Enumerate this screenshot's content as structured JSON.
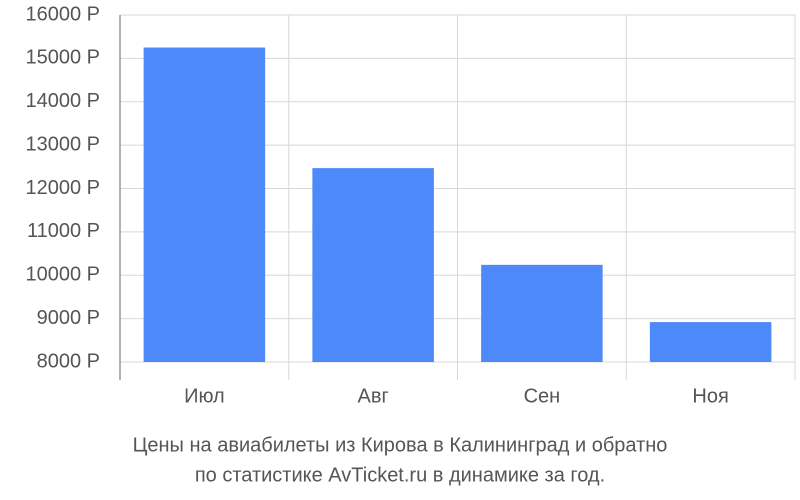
{
  "chart_data": {
    "type": "bar",
    "title": "Цены на авиабилеты из Кирова в Калининград и обратно",
    "subtitle": "по статистике AvTicket.ru в динамике за год.",
    "categories": [
      "Июл",
      "Авг",
      "Сен",
      "Ноя"
    ],
    "values": [
      15250,
      12470,
      10240,
      8920
    ],
    "color": "#4d89f9",
    "ylim": [
      8000,
      16000
    ],
    "yticks": [
      {
        "value": 8000,
        "label": "8000 Р"
      },
      {
        "value": 9000,
        "label": "9000 Р"
      },
      {
        "value": 10000,
        "label": "10000 Р"
      },
      {
        "value": 11000,
        "label": "11000 Р"
      },
      {
        "value": 12000,
        "label": "12000 Р"
      },
      {
        "value": 13000,
        "label": "13000 Р"
      },
      {
        "value": 14000,
        "label": "14000 Р"
      },
      {
        "value": 15000,
        "label": "15000 Р"
      },
      {
        "value": 16000,
        "label": "16000 Р"
      }
    ],
    "grid": true
  }
}
